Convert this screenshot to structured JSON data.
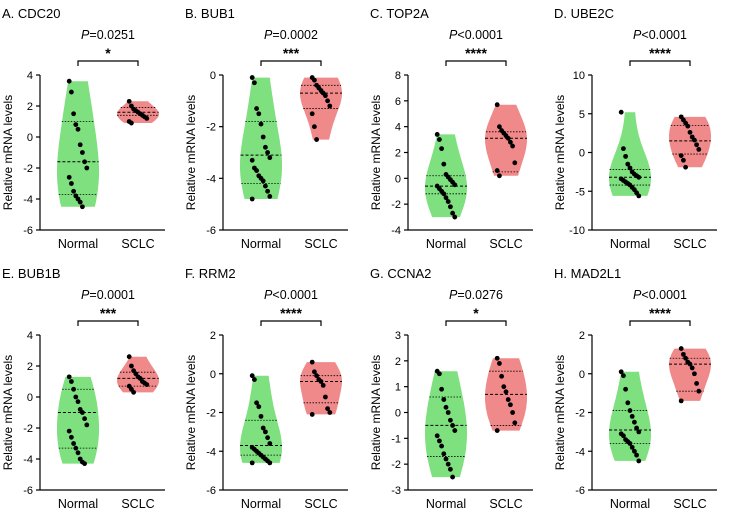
{
  "figure": {
    "ylabel": "Relative mRNA levels",
    "group_labels": [
      "Normal",
      "SCLC"
    ]
  },
  "colors": {
    "normal": "#7ee07e",
    "sclc": "#f08a8a",
    "axis": "#000000",
    "dots": "#000000"
  },
  "chart_data": [
    {
      "type": "violin",
      "title": "A. CDC20",
      "p_value": "=0.0251",
      "significance": "*",
      "ylim": [
        -6,
        4
      ],
      "yticks": [
        -6,
        -4,
        -2,
        0,
        2,
        4
      ],
      "series": [
        {
          "name": "Normal",
          "quartiles": [
            -3.7,
            -1.6,
            1.0
          ],
          "points": [
            3.6,
            2.9,
            1.5,
            0.8,
            0.5,
            -0.5,
            -1.0,
            -1.6,
            -2.0,
            -2.6,
            -3.0,
            -3.5,
            -3.8,
            -4.0,
            -4.2,
            -4.5
          ]
        },
        {
          "name": "SCLC",
          "quartiles": [
            1.4,
            1.6,
            1.9
          ],
          "points": [
            2.3,
            2.0,
            1.8,
            1.7,
            1.6,
            1.5,
            1.4,
            1.3,
            1.2,
            1.0,
            0.9
          ]
        }
      ]
    },
    {
      "type": "violin",
      "title": "B. BUB1",
      "p_value": "=0.0002",
      "significance": "***",
      "ylim": [
        -6,
        0
      ],
      "yticks": [
        -6,
        -4,
        -2,
        0
      ],
      "series": [
        {
          "name": "Normal",
          "quartiles": [
            -4.2,
            -3.1,
            -1.8
          ],
          "points": [
            -0.1,
            -0.3,
            -1.3,
            -1.5,
            -1.9,
            -2.4,
            -2.8,
            -3.0,
            -3.2,
            -3.3,
            -3.6,
            -3.7,
            -3.9,
            -4.0,
            -4.1,
            -4.3,
            -4.5,
            -4.7,
            -4.8
          ]
        },
        {
          "name": "SCLC",
          "quartiles": [
            -1.3,
            -0.7,
            -0.4
          ],
          "points": [
            -0.1,
            -0.2,
            -0.4,
            -0.5,
            -0.6,
            -0.7,
            -0.8,
            -1.0,
            -1.2,
            -1.5,
            -2.0,
            -2.5
          ]
        }
      ]
    },
    {
      "type": "violin",
      "title": "C. TOP2A",
      "p_value": "<0.0001",
      "significance": "****",
      "ylim": [
        -4,
        8
      ],
      "yticks": [
        -4,
        -2,
        0,
        2,
        4,
        6,
        8
      ],
      "series": [
        {
          "name": "Normal",
          "quartiles": [
            -1.2,
            -0.6,
            0.2
          ],
          "points": [
            3.4,
            3.0,
            2.3,
            1.1,
            0.3,
            0.1,
            -0.1,
            -0.3,
            -0.5,
            -0.6,
            -0.8,
            -1.0,
            -1.2,
            -1.5,
            -1.8,
            -2.2,
            -2.7,
            -3.0
          ]
        },
        {
          "name": "SCLC",
          "quartiles": [
            0.5,
            3.1,
            3.6
          ],
          "points": [
            5.7,
            4.0,
            3.7,
            3.5,
            3.3,
            3.1,
            2.8,
            2.5,
            1.2,
            0.6,
            0.2
          ]
        }
      ]
    },
    {
      "type": "violin",
      "title": "D. UBE2C",
      "p_value": "<0.0001",
      "significance": "****",
      "ylim": [
        -10,
        10
      ],
      "yticks": [
        -10,
        -5,
        0,
        5,
        10
      ],
      "series": [
        {
          "name": "Normal",
          "quartiles": [
            -4.2,
            -3.2,
            -2.2
          ],
          "points": [
            5.2,
            0.5,
            -0.5,
            -1.5,
            -2.0,
            -2.5,
            -2.8,
            -3.0,
            -3.2,
            -3.4,
            -3.6,
            -3.8,
            -4.0,
            -4.2,
            -4.5,
            -4.8,
            -5.2,
            -5.6
          ]
        },
        {
          "name": "SCLC",
          "quartiles": [
            -0.2,
            1.5,
            3.5
          ],
          "points": [
            4.6,
            4.2,
            3.8,
            3.4,
            2.6,
            2.0,
            1.6,
            1.0,
            0.4,
            -0.4,
            -1.0,
            -1.9
          ]
        }
      ]
    },
    {
      "type": "violin",
      "title": "E. BUB1B",
      "p_value": "=0.0001",
      "significance": "***",
      "ylim": [
        -6,
        4
      ],
      "yticks": [
        -6,
        -4,
        -2,
        0,
        2,
        4
      ],
      "series": [
        {
          "name": "Normal",
          "quartiles": [
            -3.3,
            -1.0,
            0.5
          ],
          "points": [
            1.3,
            1.0,
            0.5,
            0.0,
            -0.3,
            -0.8,
            -1.0,
            -1.4,
            -1.8,
            -2.2,
            -2.6,
            -3.0,
            -3.3,
            -3.6,
            -4.0,
            -4.2,
            -4.3
          ]
        },
        {
          "name": "SCLC",
          "quartiles": [
            0.7,
            1.2,
            1.6
          ],
          "points": [
            2.6,
            2.0,
            1.7,
            1.5,
            1.3,
            1.2,
            1.0,
            0.9,
            0.8,
            0.7,
            0.5,
            0.3
          ]
        }
      ]
    },
    {
      "type": "violin",
      "title": "F. RRM2",
      "p_value": "<0.0001",
      "significance": "****",
      "ylim": [
        -6,
        2
      ],
      "yticks": [
        -6,
        -4,
        -2,
        0,
        2
      ],
      "series": [
        {
          "name": "Normal",
          "quartiles": [
            -4.2,
            -3.7,
            -2.4
          ],
          "points": [
            -0.1,
            -0.3,
            -1.5,
            -1.7,
            -2.2,
            -2.8,
            -3.0,
            -3.3,
            -3.6,
            -3.8,
            -3.9,
            -4.0,
            -4.1,
            -4.2,
            -4.3,
            -4.4,
            -4.5,
            -4.6,
            -4.6
          ]
        },
        {
          "name": "SCLC",
          "quartiles": [
            -1.5,
            -0.4,
            -0.1
          ],
          "points": [
            0.6,
            0.1,
            -0.1,
            -0.3,
            -0.4,
            -0.6,
            -1.2,
            -1.8,
            -2.0,
            -2.1
          ]
        }
      ]
    },
    {
      "type": "violin",
      "title": "G. CCNA2",
      "p_value": "=0.0276",
      "significance": "*",
      "ylim": [
        -3,
        3
      ],
      "yticks": [
        -3,
        -2,
        -1,
        0,
        1,
        2,
        3
      ],
      "series": [
        {
          "name": "Normal",
          "quartiles": [
            -1.7,
            -0.5,
            0.6
          ],
          "points": [
            1.6,
            1.5,
            0.9,
            0.5,
            0.2,
            0.0,
            -0.3,
            -0.5,
            -0.7,
            -0.9,
            -1.1,
            -1.3,
            -1.6,
            -1.8,
            -2.0,
            -2.2,
            -2.5
          ]
        },
        {
          "name": "SCLC",
          "quartiles": [
            -0.5,
            0.7,
            1.6
          ],
          "points": [
            2.1,
            1.9,
            1.4,
            1.0,
            0.8,
            0.5,
            0.3,
            0.0,
            -0.4,
            -0.7
          ]
        }
      ]
    },
    {
      "type": "violin",
      "title": "H. MAD2L1",
      "p_value": "<0.0001",
      "significance": "****",
      "ylim": [
        -6,
        2
      ],
      "yticks": [
        -6,
        -4,
        -2,
        0,
        2
      ],
      "series": [
        {
          "name": "Normal",
          "quartiles": [
            -3.6,
            -2.9,
            -1.9
          ],
          "points": [
            0.1,
            -0.1,
            -0.8,
            -1.5,
            -1.9,
            -2.2,
            -2.5,
            -2.8,
            -3.0,
            -3.1,
            -3.2,
            -3.4,
            -3.5,
            -3.6,
            -3.8,
            -4.0,
            -4.2,
            -4.5
          ]
        },
        {
          "name": "SCLC",
          "quartiles": [
            -0.9,
            0.5,
            0.8
          ],
          "points": [
            1.3,
            1.0,
            0.8,
            0.6,
            0.5,
            0.3,
            0.0,
            -0.5,
            -0.9,
            -1.4
          ]
        }
      ]
    }
  ]
}
